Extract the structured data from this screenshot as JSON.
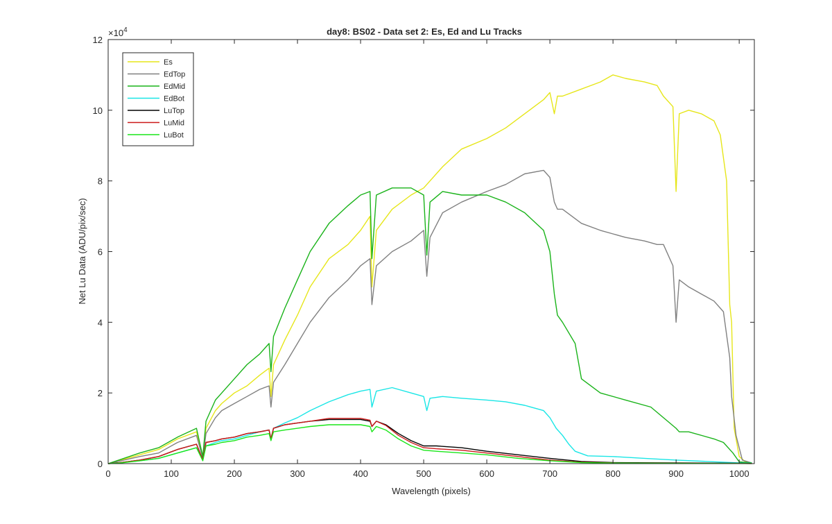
{
  "chart_data": {
    "type": "line",
    "title": "day8: BS02 - Data set 2: Es, Ed and Lu Tracks",
    "xlabel": "Wavelength (pixels)",
    "ylabel": "Net Lu Data (ADU/pix/sec)",
    "y_exponent_label": "×10",
    "y_exponent_power": "4",
    "xlim": [
      0,
      1024
    ],
    "ylim": [
      0,
      120000
    ],
    "xticks": [
      0,
      100,
      200,
      300,
      400,
      500,
      600,
      700,
      800,
      900,
      1000
    ],
    "yticks": [
      0,
      20000,
      40000,
      60000,
      80000,
      100000,
      120000
    ],
    "xtick_labels": [
      "0",
      "100",
      "200",
      "300",
      "400",
      "500",
      "600",
      "700",
      "800",
      "900",
      "1000"
    ],
    "ytick_labels": [
      "0",
      "2",
      "4",
      "6",
      "8",
      "10",
      "12"
    ],
    "legend_position": "top-left",
    "grid": false,
    "series": [
      {
        "name": "Es",
        "color": "#e6e619",
        "x": [
          0,
          20,
          50,
          80,
          110,
          140,
          150,
          155,
          170,
          180,
          200,
          220,
          240,
          255,
          258,
          262,
          280,
          300,
          320,
          350,
          380,
          400,
          415,
          418,
          425,
          450,
          480,
          500,
          530,
          560,
          600,
          630,
          660,
          690,
          700,
          707,
          712,
          720,
          750,
          780,
          800,
          820,
          850,
          870,
          880,
          895,
          900,
          905,
          920,
          940,
          960,
          970,
          980,
          985,
          988,
          992,
          1000,
          1010,
          1020
        ],
        "y": [
          0,
          1000,
          2500,
          4000,
          7000,
          9000,
          2000,
          10000,
          15000,
          17000,
          20000,
          22000,
          25000,
          27000,
          19000,
          28000,
          35000,
          42000,
          50000,
          58000,
          62000,
          66000,
          70000,
          50000,
          66000,
          72000,
          76000,
          78000,
          84000,
          89000,
          92000,
          95000,
          99000,
          103000,
          105000,
          99000,
          104000,
          104000,
          106000,
          108000,
          110000,
          109000,
          108000,
          107000,
          104000,
          101000,
          77000,
          99000,
          100000,
          99000,
          97000,
          93000,
          80000,
          45000,
          40000,
          10000,
          2000,
          500,
          200
        ]
      },
      {
        "name": "EdTop",
        "color": "#808080",
        "x": [
          0,
          20,
          50,
          80,
          110,
          140,
          150,
          155,
          170,
          180,
          200,
          220,
          240,
          255,
          258,
          262,
          280,
          300,
          320,
          350,
          380,
          400,
          415,
          418,
          425,
          450,
          480,
          500,
          505,
          510,
          530,
          560,
          600,
          630,
          660,
          690,
          700,
          707,
          712,
          720,
          750,
          780,
          800,
          820,
          850,
          870,
          880,
          895,
          900,
          905,
          920,
          940,
          960,
          975,
          985,
          988,
          995,
          1005,
          1020
        ],
        "y": [
          0,
          800,
          2000,
          3000,
          6000,
          8000,
          1500,
          8500,
          13000,
          15000,
          17000,
          19000,
          21000,
          22000,
          16000,
          23000,
          28000,
          34000,
          40000,
          47000,
          52000,
          56000,
          58000,
          45000,
          56000,
          60000,
          63000,
          66000,
          53000,
          64000,
          71000,
          74000,
          77000,
          79000,
          82000,
          83000,
          81000,
          74000,
          72000,
          72000,
          68000,
          66000,
          65000,
          64000,
          63000,
          62000,
          62000,
          56000,
          40000,
          52000,
          50000,
          48000,
          46000,
          43000,
          30000,
          19000,
          8000,
          1000,
          200
        ]
      },
      {
        "name": "EdMid",
        "color": "#19b319",
        "x": [
          0,
          20,
          50,
          80,
          110,
          140,
          150,
          155,
          170,
          180,
          200,
          220,
          240,
          255,
          258,
          262,
          280,
          300,
          320,
          350,
          380,
          400,
          415,
          418,
          425,
          450,
          480,
          500,
          505,
          510,
          530,
          560,
          600,
          630,
          660,
          690,
          700,
          707,
          712,
          720,
          740,
          750,
          780,
          820,
          860,
          900,
          905,
          920,
          960,
          975,
          990,
          1000,
          1020
        ],
        "y": [
          0,
          1200,
          3000,
          4500,
          7500,
          10000,
          2000,
          12000,
          18000,
          20000,
          24000,
          28000,
          31000,
          34000,
          26000,
          36000,
          44000,
          52000,
          60000,
          68000,
          73000,
          76000,
          77000,
          58000,
          76000,
          78000,
          78000,
          76000,
          59000,
          74000,
          77000,
          76000,
          76000,
          74000,
          71000,
          66000,
          60000,
          48000,
          42000,
          40000,
          34000,
          24000,
          20000,
          18000,
          16000,
          10000,
          9000,
          9000,
          7000,
          6000,
          3000,
          500,
          200
        ]
      },
      {
        "name": "EdBot",
        "color": "#19e6e6",
        "x": [
          0,
          20,
          50,
          80,
          110,
          140,
          150,
          155,
          170,
          180,
          200,
          220,
          240,
          255,
          258,
          262,
          280,
          300,
          320,
          350,
          380,
          400,
          415,
          418,
          425,
          450,
          480,
          500,
          505,
          510,
          530,
          560,
          600,
          630,
          660,
          690,
          700,
          710,
          720,
          730,
          740,
          760,
          800,
          850,
          900,
          950,
          1000,
          1020
        ],
        "y": [
          0,
          300,
          800,
          1500,
          3000,
          4500,
          1000,
          5000,
          6000,
          6500,
          7000,
          8000,
          9000,
          9500,
          7000,
          10000,
          11500,
          13000,
          15000,
          17500,
          19500,
          20500,
          21000,
          16000,
          20500,
          21500,
          20000,
          19000,
          15000,
          18500,
          19000,
          18500,
          18000,
          17500,
          16500,
          15000,
          13000,
          10000,
          8000,
          5500,
          3500,
          2200,
          2000,
          1500,
          1000,
          600,
          200,
          100
        ]
      },
      {
        "name": "LuTop",
        "color": "#000000",
        "x": [
          0,
          20,
          50,
          80,
          110,
          140,
          150,
          155,
          170,
          180,
          200,
          220,
          240,
          255,
          258,
          262,
          280,
          300,
          320,
          350,
          380,
          400,
          415,
          418,
          425,
          440,
          460,
          480,
          500,
          520,
          560,
          600,
          650,
          700,
          750,
          800,
          900,
          1000,
          1020
        ],
        "y": [
          0,
          300,
          1000,
          2000,
          4000,
          5500,
          1000,
          6000,
          6500,
          7000,
          7500,
          8500,
          9000,
          9500,
          7000,
          10000,
          11000,
          11500,
          12000,
          12500,
          12500,
          12500,
          12000,
          10500,
          12000,
          11000,
          8500,
          6500,
          5000,
          5000,
          4500,
          3500,
          2500,
          1500,
          600,
          300,
          200,
          100,
          50
        ]
      },
      {
        "name": "LuMid",
        "color": "#cc1919",
        "x": [
          0,
          20,
          50,
          80,
          110,
          140,
          150,
          155,
          170,
          180,
          200,
          220,
          240,
          255,
          258,
          262,
          280,
          300,
          320,
          350,
          380,
          400,
          415,
          418,
          425,
          440,
          460,
          480,
          500,
          520,
          560,
          600,
          650,
          700,
          750,
          800,
          900,
          1000,
          1020
        ],
        "y": [
          0,
          300,
          1000,
          2000,
          4000,
          5500,
          1000,
          6000,
          6500,
          7000,
          7500,
          8500,
          9000,
          9500,
          7000,
          10000,
          11000,
          11500,
          12000,
          12800,
          12800,
          12800,
          12300,
          10500,
          12000,
          10800,
          8000,
          6000,
          4500,
          4200,
          3800,
          3000,
          2000,
          1000,
          400,
          200,
          100,
          50,
          20
        ]
      },
      {
        "name": "LuBot",
        "color": "#19e619",
        "x": [
          0,
          20,
          50,
          80,
          110,
          140,
          150,
          155,
          170,
          180,
          200,
          220,
          240,
          255,
          258,
          262,
          280,
          300,
          320,
          350,
          380,
          400,
          415,
          418,
          425,
          440,
          460,
          480,
          500,
          520,
          560,
          600,
          650,
          700,
          750,
          800,
          900,
          1000,
          1020
        ],
        "y": [
          0,
          200,
          800,
          1500,
          3000,
          4500,
          800,
          5000,
          5500,
          6000,
          6500,
          7500,
          8000,
          8500,
          6500,
          9000,
          9500,
          10000,
          10500,
          11000,
          11000,
          11000,
          10500,
          9000,
          10500,
          9500,
          7000,
          5000,
          3800,
          3500,
          3000,
          2500,
          1500,
          800,
          300,
          150,
          80,
          40,
          20
        ]
      }
    ]
  }
}
